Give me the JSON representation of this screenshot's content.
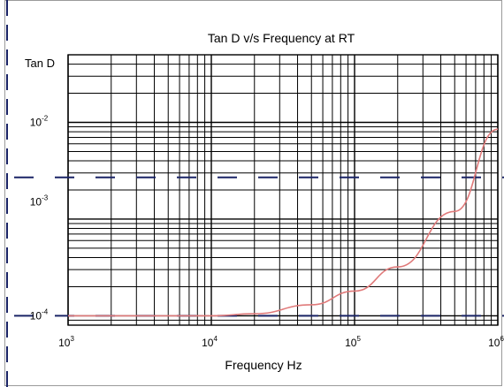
{
  "chart_data": {
    "type": "line",
    "title": "Tan D v/s Frequency at RT",
    "xlabel": "Frequency Hz",
    "ylabel": "Tan D",
    "x_scale": "log",
    "y_scale": "log",
    "xlim": [
      1000,
      1000000
    ],
    "ylim": [
      8e-05,
      0.05
    ],
    "x_ticks": [
      {
        "base": "10",
        "exp": "3",
        "value": 1000
      },
      {
        "base": "10",
        "exp": "4",
        "value": 10000
      },
      {
        "base": "10",
        "exp": "5",
        "value": 100000
      },
      {
        "base": "10",
        "exp": "6",
        "value": 1000000
      }
    ],
    "y_ticks": [
      {
        "base": "10",
        "exp": "-2",
        "value": 0.01
      },
      {
        "base": "10",
        "exp": "-3",
        "value": 0.001
      },
      {
        "base": "10",
        "exp": "-4",
        "value": 0.0001
      }
    ],
    "grid": true,
    "series": [
      {
        "color": "#e07a7a",
        "points": [
          [
            1000,
            0.0001
          ],
          [
            2000,
            0.0001
          ],
          [
            5000,
            0.0001
          ],
          [
            10000,
            0.0001
          ],
          [
            20000,
            0.000105
          ],
          [
            50000,
            0.00013
          ],
          [
            100000,
            0.00018
          ],
          [
            200000,
            0.00032
          ],
          [
            500000,
            0.0012
          ],
          [
            1000000,
            0.0085
          ]
        ]
      }
    ],
    "colors": {
      "grid": "#000000",
      "series": "#e07a7a",
      "dashed_rule": "#1a2466",
      "frame": "#1a2466"
    }
  }
}
